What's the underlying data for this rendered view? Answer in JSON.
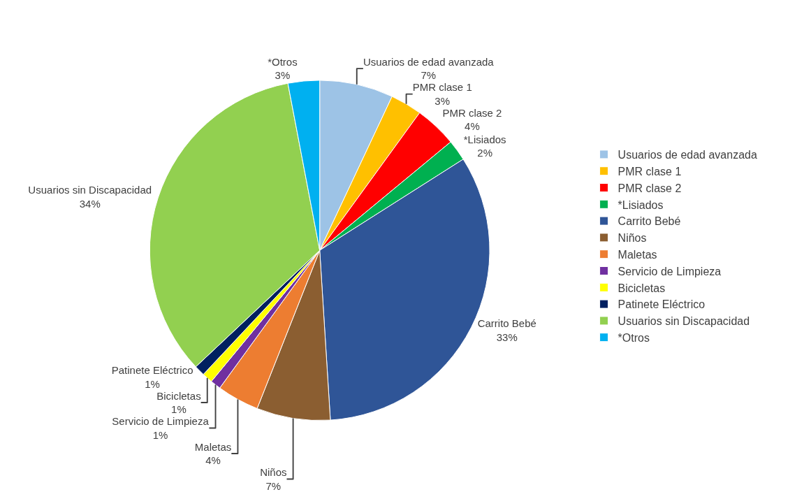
{
  "chart_data": {
    "type": "pie",
    "categories": [
      "Usuarios de edad avanzada",
      "PMR clase 1",
      "PMR clase 2",
      "*Lisiados",
      "Carrito Bebé",
      "Niños",
      "Maletas",
      "Servicio de Limpieza",
      "Bicicletas",
      "Patinete Eléctrico",
      "Usuarios sin Discapacidad",
      "*Otros"
    ],
    "values": [
      7,
      3,
      4,
      2,
      33,
      7,
      4,
      1,
      1,
      1,
      34,
      3
    ],
    "value_labels": [
      "7%",
      "3%",
      "4%",
      "2%",
      "33%",
      "7%",
      "4%",
      "1%",
      "1%",
      "1%",
      "34%",
      "3%"
    ],
    "colors": [
      "#9dc3e6",
      "#ffc000",
      "#ff0000",
      "#00b050",
      "#2f5597",
      "#8b5e31",
      "#ed7d31",
      "#7030a0",
      "#ffff00",
      "#002060",
      "#92d050",
      "#00b0f0"
    ],
    "legend": "right"
  }
}
